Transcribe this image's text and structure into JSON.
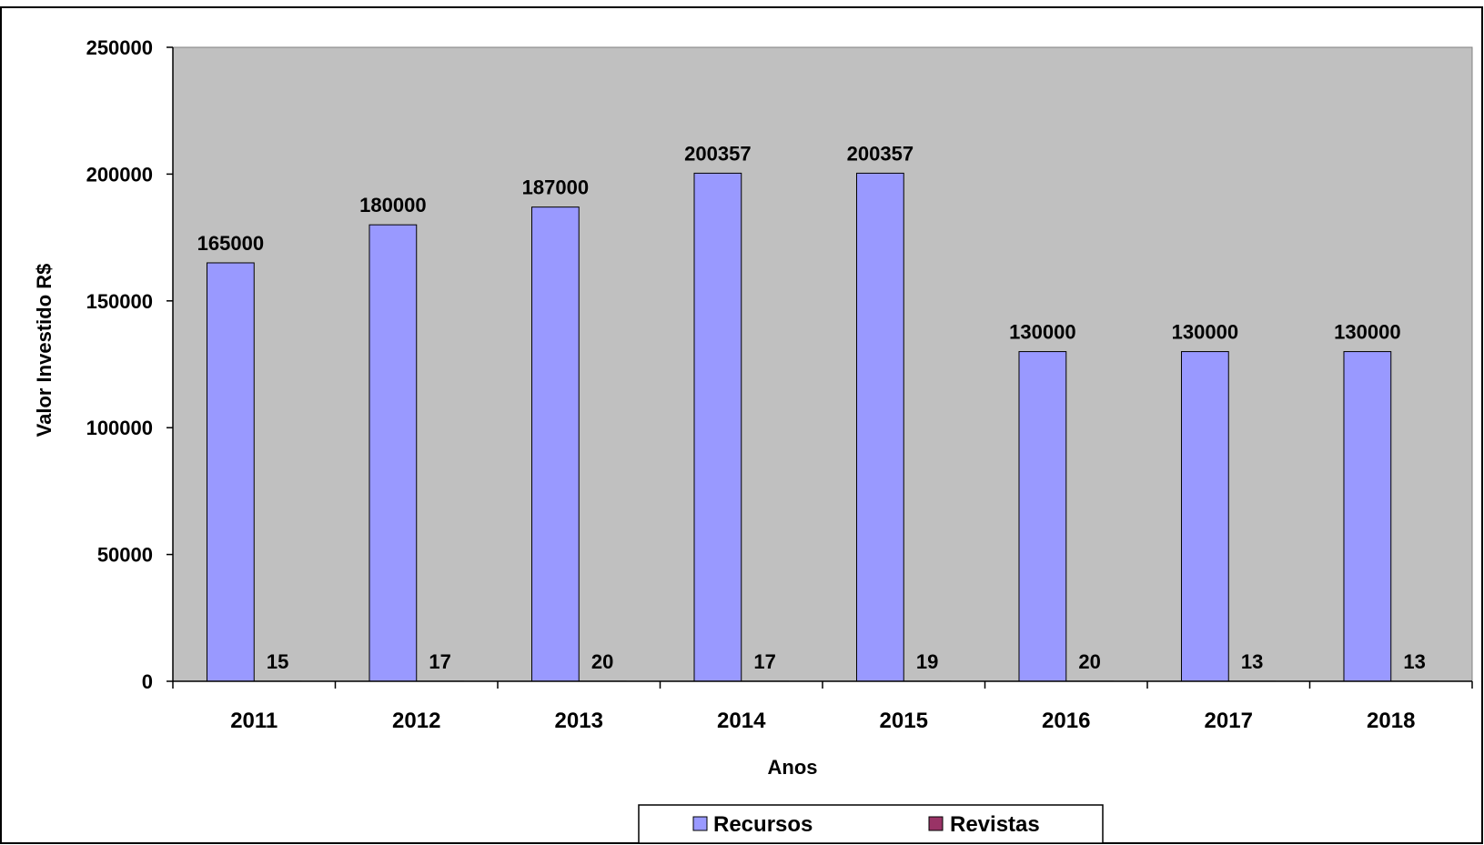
{
  "chart_data": {
    "type": "bar",
    "xlabel": "Anos",
    "ylabel": "Valor Investido R$",
    "ylim": [
      0,
      250000
    ],
    "yticks": [
      "0",
      "50000",
      "100000",
      "150000",
      "200000",
      "250000"
    ],
    "grid": false,
    "legend_position": "bottom",
    "categories": [
      "2011",
      "2012",
      "2013",
      "2014",
      "2015",
      "2016",
      "2017",
      "2018"
    ],
    "series": [
      {
        "name": "Recursos",
        "color": "#9999ff",
        "values": [
          165000,
          180000,
          187000,
          200357,
          200357,
          130000,
          130000,
          130000
        ],
        "labels": [
          "165000",
          "180000",
          "187000",
          "200357",
          "200357",
          "130000",
          "130000",
          "130000"
        ]
      },
      {
        "name": "Revistas",
        "color": "#993366",
        "values": [
          15,
          17,
          20,
          17,
          19,
          20,
          13,
          13
        ],
        "labels": [
          "15",
          "17",
          "20",
          "17",
          "19",
          "20",
          "13",
          "13"
        ]
      }
    ],
    "plot_background": "#c0c0c0"
  }
}
